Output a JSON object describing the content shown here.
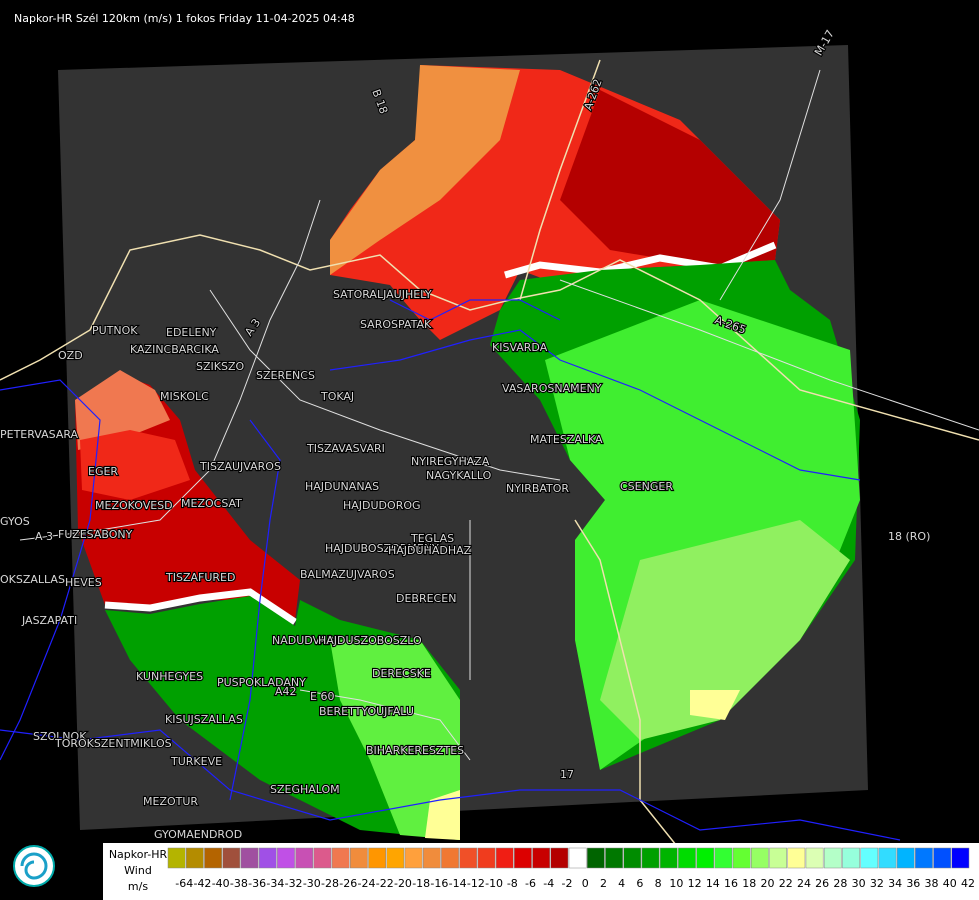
{
  "header": {
    "title": "Napkor-HR Szél 120km (m/s) 1 fokos Friday 11-04-2025 04:48"
  },
  "map": {
    "labels": [
      "SATORALJAUJHELY",
      "SAROSPATAK",
      "PUTNOK",
      "EDELENY",
      "KAZINCBARCIKA",
      "SZIKSZO",
      "SZERENCS",
      "OZD",
      "TOKAJ",
      "MISKOLC",
      "PETERVASARA",
      "EGER",
      "TISZAUJVAROS",
      "TISZAVASVARI",
      "NYIREGYHAZA",
      "NAGYKALLO",
      "HAJDUNANAS",
      "HAJDUDOROG",
      "NYIRBATOR",
      "MEZOKOVESD",
      "MEZOCSAT",
      "GYOS",
      "FUZESABONY",
      "TEGLAS",
      "HAJDUBOSZORMENY",
      "HAJDUHADHAZ",
      "KISVARDA",
      "VASAROSNAMENY",
      "MATESZALKA",
      "CSENGER",
      "HEVES",
      "OKSZALLAS",
      "TISZAFURED",
      "BALMAZUJVAROS",
      "DEBRECEN",
      "JASZAPATI",
      "NADUDVAR",
      "HAJDUSZOBOSZLO",
      "KUNHEGYES",
      "PUSPOKLADANY",
      "DERECSKE",
      "BERETTYOUJFALU",
      "KISUJSZALLAS",
      "SZOLNOK",
      "TOROKSZENTMIKLOS",
      "TURKEVE",
      "BIHARKERESZTES",
      "MEZOTUR",
      "SZEGHALOM",
      "GYOMAENDROD",
      "B 18",
      "A-262",
      "M-17",
      "A-265",
      "18 (RO)",
      "A 3",
      "A 3",
      "E 60",
      "A42",
      "17"
    ]
  },
  "legend": {
    "title": "Napkor-HR",
    "subtitle": "Wind",
    "unit": "m/s",
    "ticks": [
      -64,
      -42,
      -40,
      -38,
      -36,
      -34,
      -32,
      -30,
      -28,
      -26,
      -24,
      -22,
      -20,
      -18,
      -16,
      -14,
      -12,
      -10,
      -8,
      -6,
      -4,
      -2,
      0,
      2,
      4,
      6,
      8,
      10,
      12,
      14,
      16,
      18,
      20,
      22,
      24,
      26,
      28,
      30,
      32,
      34,
      36,
      38,
      40,
      42
    ],
    "colors": [
      "#b4b400",
      "#b48c00",
      "#b46400",
      "#a0503c",
      "#a050a0",
      "#a050e6",
      "#c050e6",
      "#c850b4",
      "#dc5a8c",
      "#f07850",
      "#f08c3c",
      "#ff9600",
      "#ffa500",
      "#ffa03c",
      "#f08c3c",
      "#f07832",
      "#f05028",
      "#f03c1e",
      "#f01e14",
      "#dc0000",
      "#c80000",
      "#b40000",
      "#ffffff",
      "#006400",
      "#007800",
      "#008c00",
      "#00a000",
      "#00b400",
      "#00dc00",
      "#00f000",
      "#32ff32",
      "#64ff32",
      "#96ff64",
      "#c8ff96",
      "#ffff96",
      "#dcffb4",
      "#b4ffc8",
      "#96ffdc",
      "#64ffff",
      "#32dcff",
      "#00b4ff",
      "#0078ff",
      "#0050ff",
      "#0000ff"
    ]
  }
}
